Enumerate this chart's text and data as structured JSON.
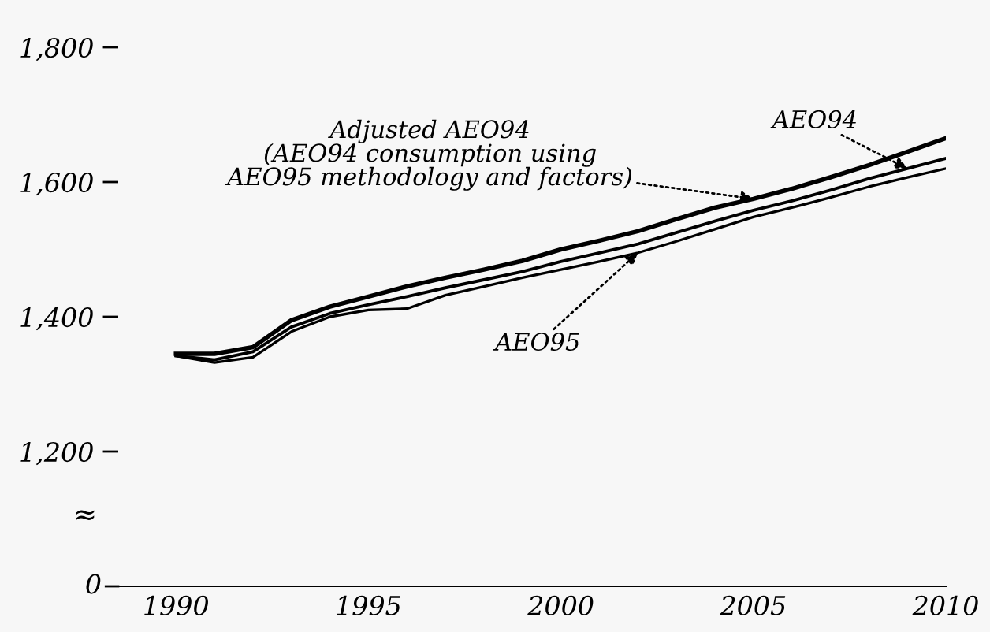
{
  "chart_data": {
    "type": "line",
    "x": [
      1990,
      1991,
      1992,
      1993,
      1994,
      1995,
      1996,
      1997,
      1998,
      1999,
      2000,
      2001,
      2002,
      2003,
      2004,
      2005,
      2006,
      2007,
      2008,
      2009,
      2010
    ],
    "series": [
      {
        "name": "Adjusted AEO94\n(AEO94 consumption using\nAEO95 methodology and factors)",
        "color": "#000000",
        "values": [
          1345,
          1345,
          1355,
          1395,
          1415,
          1430,
          1445,
          1458,
          1470,
          1483,
          1500,
          1513,
          1527,
          1545,
          1562,
          1575,
          1590,
          1607,
          1625,
          1645,
          1665
        ]
      },
      {
        "name": "AEO94",
        "color": "#000000",
        "values": [
          1342,
          1336,
          1348,
          1385,
          1405,
          1418,
          1430,
          1443,
          1455,
          1467,
          1482,
          1495,
          1508,
          1525,
          1542,
          1558,
          1572,
          1588,
          1605,
          1620,
          1635
        ]
      },
      {
        "name": "AEO95",
        "color": "#000000",
        "values": [
          1342,
          1332,
          1340,
          1378,
          1400,
          1410,
          1412,
          1432,
          1445,
          1458,
          1470,
          1482,
          1495,
          1512,
          1530,
          1548,
          1562,
          1577,
          1593,
          1607,
          1620
        ]
      }
    ],
    "xlim": [
      1988.5,
      2010
    ],
    "xticks": [
      1990,
      1995,
      2000,
      2005,
      2010
    ],
    "ylim": [
      1000,
      1800
    ],
    "yticks": [
      {
        "value": 1200,
        "label": "1,200"
      },
      {
        "value": 1400,
        "label": "1,400"
      },
      {
        "value": 1600,
        "label": "1,600"
      },
      {
        "value": 1800,
        "label": "1,800"
      }
    ],
    "annotations": [
      "≈",
      "0"
    ],
    "legend": false,
    "grid": false,
    "marker": "none",
    "line_style": "solid"
  }
}
